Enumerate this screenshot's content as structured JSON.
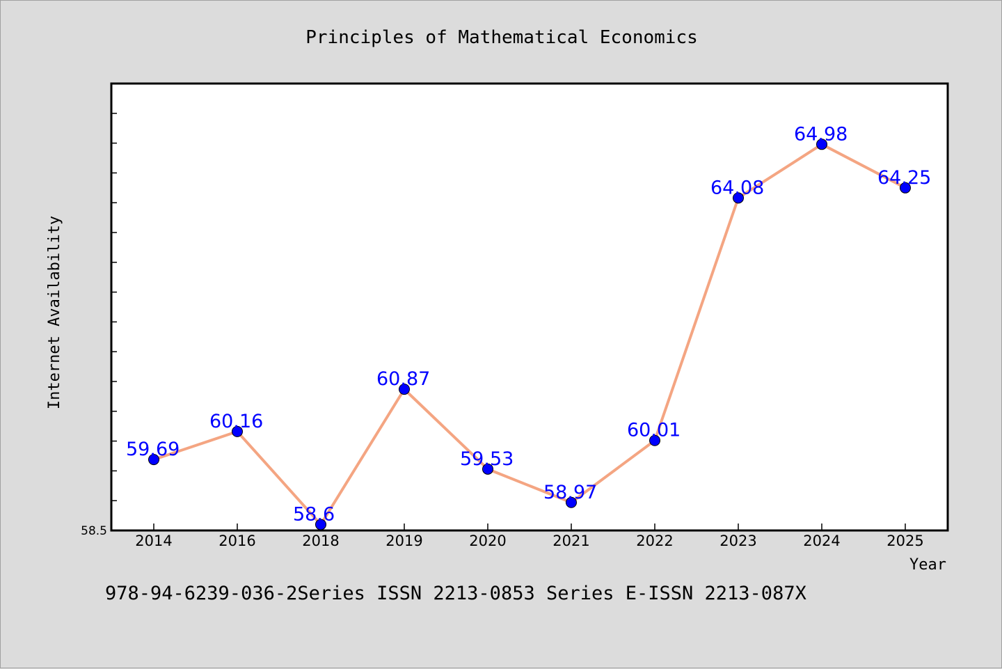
{
  "chart_data": {
    "type": "line",
    "title": "Principles of Mathematical Economics",
    "xlabel": "Year",
    "ylabel": "Internet Availability",
    "categories": [
      "2014",
      "2016",
      "2018",
      "2019",
      "2020",
      "2021",
      "2022",
      "2023",
      "2024",
      "2025"
    ],
    "values": [
      59.69,
      60.16,
      58.6,
      60.87,
      59.53,
      58.97,
      60.01,
      64.08,
      64.98,
      64.25
    ],
    "data_labels": [
      "59.69",
      "60.16",
      "58.6",
      "60.87",
      "59.53",
      "58.97",
      "60.01",
      "64.08",
      "64.98",
      "64.25"
    ],
    "y_tick_label": "58.5",
    "ylim": [
      58.5,
      66.0
    ],
    "grid": false,
    "legend": "none",
    "colors": {
      "line": "#f4a582",
      "marker": "#0000ff",
      "label": "#0000ff",
      "background": "#dcdcdc",
      "plot_background": "#ffffff"
    }
  },
  "footer": {
    "text": "978-94-6239-036-2Series ISSN 2213-0853 Series E-ISSN 2213-087X"
  }
}
